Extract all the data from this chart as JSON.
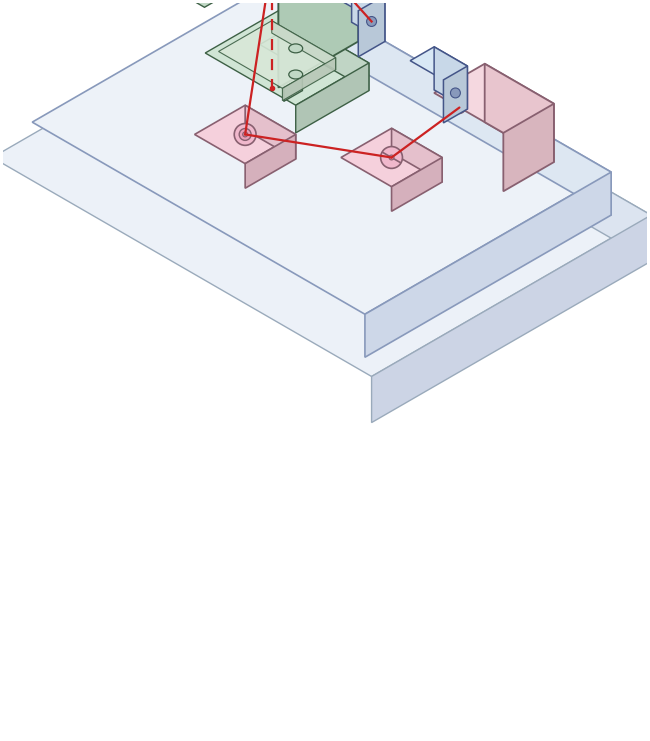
{
  "bg_color": "#ffffff",
  "laser_color": "#cc2222",
  "table_top": "#edf2f8",
  "table_side_l": "#dce6f0",
  "table_side_r": "#ccd6e8",
  "table_edge": "#8899aa",
  "base_top": "#e8edf5",
  "base_side_l": "#d5dce8",
  "base_side_r": "#c5ccd8",
  "base_edge": "#8899aa",
  "micro_top": "#d8edd8",
  "micro_side_l": "#c5ddc5",
  "micro_side_r": "#b5cdb5",
  "micro_edge": "#4a6650",
  "spec_top": "#c8dff5",
  "spec_side_l": "#b5cce5",
  "spec_side_r": "#a0bcd5",
  "spec_edge": "#3355aa",
  "pink_top": "#f5d8e0",
  "pink_side_l": "#e5c5ce",
  "pink_side_r": "#d5b5be",
  "pink_edge": "#886070"
}
